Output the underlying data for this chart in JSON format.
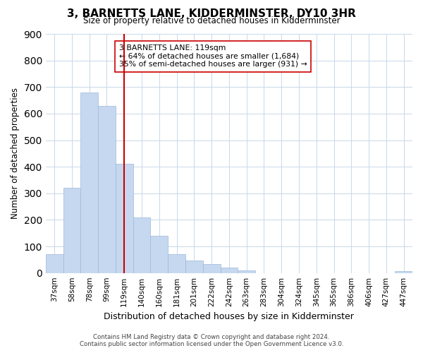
{
  "title": "3, BARNETTS LANE, KIDDERMINSTER, DY10 3HR",
  "subtitle": "Size of property relative to detached houses in Kidderminster",
  "xlabel": "Distribution of detached houses by size in Kidderminster",
  "ylabel": "Number of detached properties",
  "bar_labels": [
    "37sqm",
    "58sqm",
    "78sqm",
    "99sqm",
    "119sqm",
    "140sqm",
    "160sqm",
    "181sqm",
    "201sqm",
    "222sqm",
    "242sqm",
    "263sqm",
    "283sqm",
    "304sqm",
    "324sqm",
    "345sqm",
    "365sqm",
    "386sqm",
    "406sqm",
    "427sqm",
    "447sqm"
  ],
  "bar_values": [
    70,
    320,
    680,
    630,
    410,
    210,
    140,
    70,
    48,
    35,
    20,
    10,
    0,
    0,
    0,
    0,
    0,
    0,
    0,
    0,
    7
  ],
  "bar_color": "#c5d8f0",
  "bar_edge_color": "#a0b8d8",
  "vline_x_index": 4,
  "vline_color": "#cc0000",
  "annotation_text": "3 BARNETTS LANE: 119sqm\n← 64% of detached houses are smaller (1,684)\n35% of semi-detached houses are larger (931) →",
  "annotation_box_color": "#ffffff",
  "annotation_box_edge": "#cc0000",
  "ylim": [
    0,
    900
  ],
  "yticks": [
    0,
    100,
    200,
    300,
    400,
    500,
    600,
    700,
    800,
    900
  ],
  "footer_line1": "Contains HM Land Registry data © Crown copyright and database right 2024.",
  "footer_line2": "Contains public sector information licensed under the Open Government Licence v3.0.",
  "background_color": "#ffffff",
  "grid_color": "#c8d8e8"
}
